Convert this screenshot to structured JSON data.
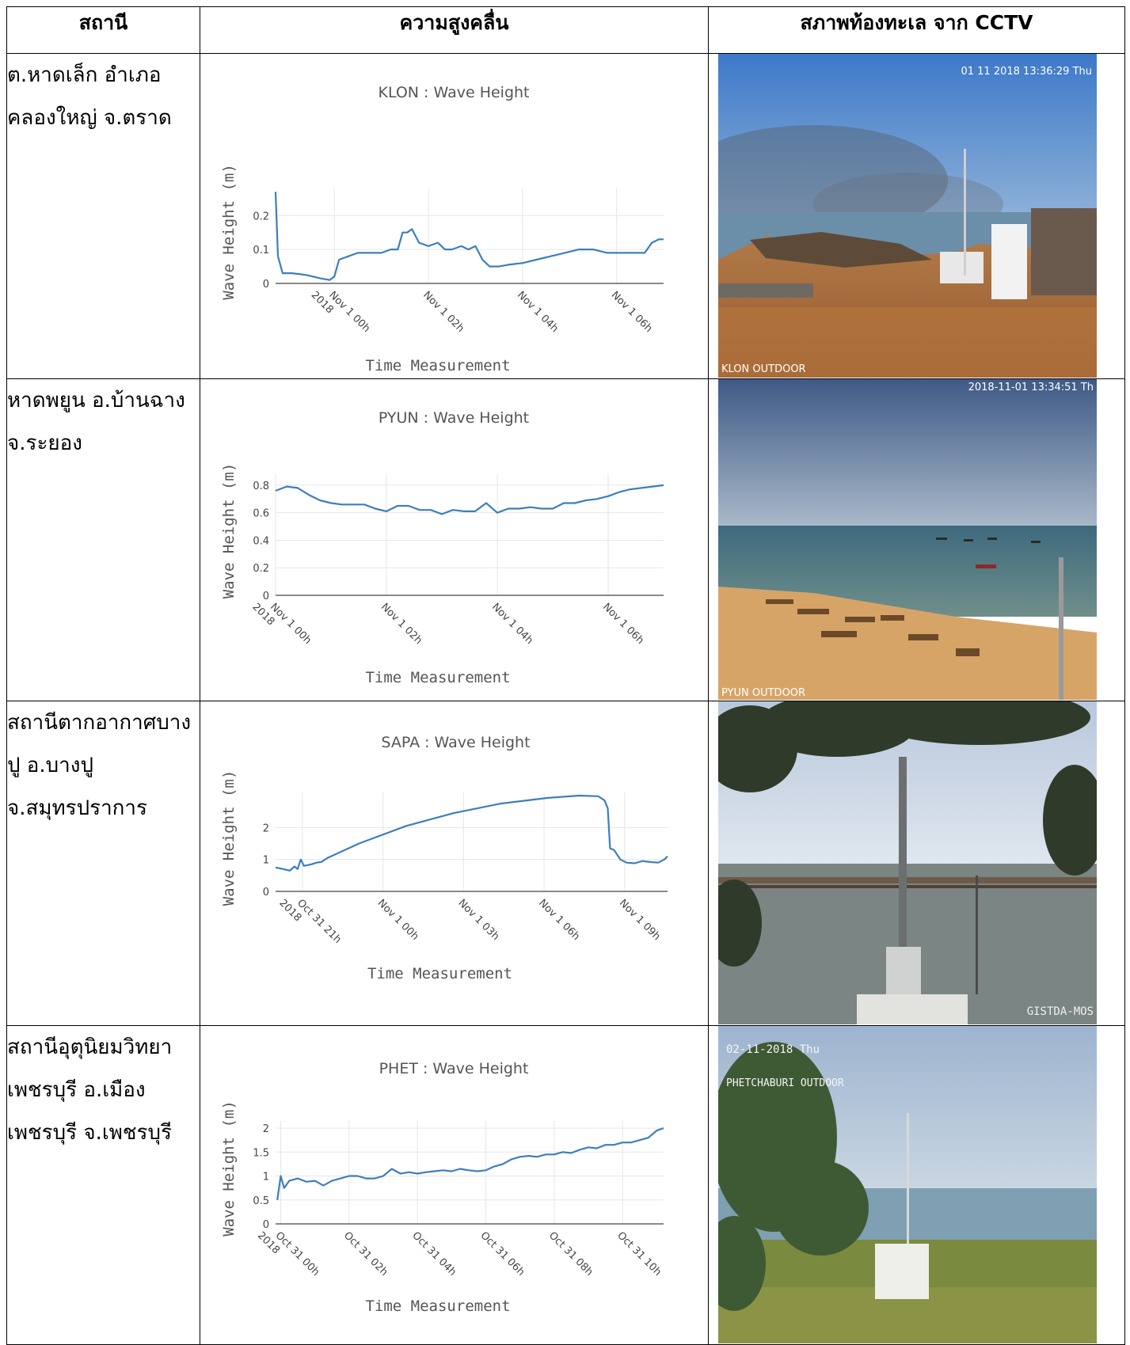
{
  "headers": {
    "station": "สถานี",
    "wave": "ความสูงคลื่น",
    "cctv": "สภาพท้องทะเล จาก CCTV"
  },
  "rows": [
    {
      "station_lines": [
        "ต.หาดเล็ก อำเภอ",
        "คลองใหญ่ จ.ตราด"
      ],
      "chart_title": "KLON : Wave Height",
      "cctv_overlay_top": "01 11 2018 13:36:29 Thu",
      "cctv_overlay_bottom": "KLON OUTDOOR"
    },
    {
      "station_lines": [
        "หาดพยูน อ.บ้านฉาง",
        "จ.ระยอง"
      ],
      "chart_title": "PYUN : Wave Height",
      "cctv_overlay_top": "2018-11-01 13:34:51 Th",
      "cctv_overlay_bottom": "PYUN OUTDOOR"
    },
    {
      "station_lines": [
        "สถานีตากอากาศบาง",
        "ปู อ.บางปู",
        "จ.สมุทรปราการ"
      ],
      "chart_title": "SAPA : Wave Height",
      "cctv_overlay_top": "",
      "cctv_overlay_bottom": "GISTDA-MOS"
    },
    {
      "station_lines": [
        "สถานีอุตุนิยมวิทยา",
        "เพชรบุรี อ.เมือง",
        "เพชรบุรี จ.เพชรบุรี"
      ],
      "chart_title": "PHET : Wave Height",
      "cctv_overlay_top": "02-11-2018 Thu",
      "cctv_overlay_bottom": "PHETCHABURI OUTDOOR"
    }
  ],
  "colors": {
    "line": "#3d7ebf",
    "grid": "#e6e6e6",
    "axis": "#444444",
    "title": "#555555"
  },
  "chart_data": [
    {
      "type": "line",
      "title": "KLON : Wave Height",
      "xlabel": "Time Measurement",
      "ylabel": "Wave Height (m)",
      "ylim": [
        0,
        0.28
      ],
      "yticks": [
        0,
        0.1,
        0.2
      ],
      "xticks": [
        "Nov 1 00h 2018",
        "Nov 1 02h",
        "Nov 1 04h",
        "Nov 1 06h"
      ],
      "x_hours": [
        -1.25,
        -1.2,
        -1.1,
        -0.9,
        -0.6,
        -0.3,
        -0.1,
        0.0,
        0.1,
        0.3,
        0.5,
        0.7,
        1.0,
        1.2,
        1.35,
        1.45,
        1.55,
        1.65,
        1.8,
        2.0,
        2.2,
        2.35,
        2.5,
        2.7,
        2.85,
        3.0,
        3.15,
        3.3,
        3.5,
        3.7,
        4.0,
        4.3,
        4.6,
        4.9,
        5.2,
        5.5,
        5.8,
        6.0,
        6.2,
        6.4,
        6.6,
        6.75,
        6.9,
        7.0
      ],
      "values": [
        0.27,
        0.08,
        0.03,
        0.03,
        0.025,
        0.015,
        0.01,
        0.02,
        0.07,
        0.08,
        0.09,
        0.09,
        0.09,
        0.1,
        0.1,
        0.15,
        0.15,
        0.16,
        0.12,
        0.11,
        0.12,
        0.1,
        0.1,
        0.11,
        0.1,
        0.11,
        0.07,
        0.05,
        0.05,
        0.055,
        0.06,
        0.07,
        0.08,
        0.09,
        0.1,
        0.1,
        0.09,
        0.09,
        0.09,
        0.09,
        0.09,
        0.12,
        0.13,
        0.13
      ],
      "xlim": [
        -1.25,
        7.0
      ]
    },
    {
      "type": "line",
      "title": "PYUN : Wave Height",
      "xlabel": "Time Measurement",
      "ylabel": "Wave Height (m)",
      "ylim": [
        0,
        0.88
      ],
      "yticks": [
        0,
        0.2,
        0.4,
        0.6,
        0.8
      ],
      "xticks": [
        "Nov 1 00h 2018",
        "Nov 1 02h",
        "Nov 1 04h",
        "Nov 1 06h"
      ],
      "x_hours": [
        0.0,
        0.2,
        0.4,
        0.6,
        0.8,
        1.0,
        1.2,
        1.4,
        1.6,
        1.8,
        2.0,
        2.2,
        2.4,
        2.6,
        2.8,
        3.0,
        3.2,
        3.4,
        3.6,
        3.8,
        4.0,
        4.2,
        4.4,
        4.6,
        4.8,
        5.0,
        5.2,
        5.4,
        5.6,
        5.8,
        6.0,
        6.2,
        6.4,
        6.6,
        6.8,
        7.0
      ],
      "values": [
        0.76,
        0.79,
        0.78,
        0.73,
        0.69,
        0.67,
        0.66,
        0.66,
        0.66,
        0.63,
        0.61,
        0.65,
        0.65,
        0.62,
        0.62,
        0.59,
        0.62,
        0.61,
        0.61,
        0.67,
        0.6,
        0.63,
        0.63,
        0.64,
        0.63,
        0.63,
        0.67,
        0.67,
        0.69,
        0.7,
        0.72,
        0.75,
        0.77,
        0.78,
        0.79,
        0.8
      ],
      "xlim": [
        0.0,
        7.0
      ]
    },
    {
      "type": "line",
      "title": "SAPA : Wave Height",
      "xlabel": "Time Measurement",
      "ylabel": "Wave Height (m)",
      "ylim": [
        0,
        3.1
      ],
      "yticks": [
        0,
        1,
        2
      ],
      "xticks": [
        "Oct 31 21h 2018",
        "Nov 1 00h",
        "Nov 1 03h",
        "Nov 1 06h",
        "Nov 1 09h"
      ],
      "x_hours": [
        -22.3,
        -21.8,
        -21.4,
        -21.1,
        -20.9,
        -20.7,
        -20.5,
        -20.3,
        -20.0,
        -19.7,
        -19.4,
        -19.0,
        -17.0,
        -14.0,
        -11.0,
        -8.0,
        -5.0,
        -3.0,
        -1.8,
        -1.4,
        -1.2,
        -1.05,
        -0.8,
        -0.4,
        0.0,
        0.5,
        1.0,
        1.5,
        2.0,
        2.4,
        2.6
      ],
      "values": [
        0.75,
        0.7,
        0.65,
        0.78,
        0.7,
        1.0,
        0.8,
        0.82,
        0.85,
        0.9,
        0.92,
        1.05,
        1.5,
        2.05,
        2.45,
        2.75,
        2.93,
        3.0,
        2.98,
        2.85,
        2.6,
        1.35,
        1.3,
        1.0,
        0.9,
        0.88,
        0.95,
        0.92,
        0.9,
        1.0,
        1.1
      ],
      "xlim": [
        -22.3,
        2.6
      ]
    },
    {
      "type": "line",
      "title": "PHET : Wave Height",
      "xlabel": "Time Measurement",
      "ylabel": "Wave Height (m)",
      "ylim": [
        0,
        2.15
      ],
      "yticks": [
        0,
        0.5,
        1,
        1.5,
        2
      ],
      "xticks": [
        "Oct 31 00h 2018",
        "Oct 31 02h",
        "Oct 31 04h",
        "Oct 31 06h",
        "Oct 31 08h",
        "Oct 31 10h"
      ],
      "x_hours": [
        -0.1,
        0.0,
        0.1,
        0.25,
        0.5,
        0.75,
        1.0,
        1.25,
        1.5,
        1.75,
        2.0,
        2.25,
        2.5,
        2.75,
        3.0,
        3.25,
        3.5,
        3.75,
        4.0,
        4.25,
        4.5,
        4.75,
        5.0,
        5.25,
        5.5,
        5.75,
        6.0,
        6.25,
        6.5,
        6.75,
        7.0,
        7.25,
        7.5,
        7.75,
        8.0,
        8.25,
        8.5,
        8.75,
        9.0,
        9.25,
        9.5,
        9.75,
        10.0,
        10.25,
        10.5,
        10.75,
        11.0,
        11.2
      ],
      "values": [
        0.5,
        1.0,
        0.75,
        0.9,
        0.95,
        0.88,
        0.9,
        0.8,
        0.9,
        0.95,
        1.0,
        1.0,
        0.95,
        0.95,
        1.0,
        1.15,
        1.05,
        1.08,
        1.05,
        1.08,
        1.1,
        1.12,
        1.1,
        1.15,
        1.12,
        1.1,
        1.12,
        1.2,
        1.25,
        1.35,
        1.4,
        1.42,
        1.4,
        1.45,
        1.45,
        1.5,
        1.48,
        1.55,
        1.6,
        1.58,
        1.65,
        1.65,
        1.7,
        1.7,
        1.75,
        1.8,
        1.95,
        2.0
      ],
      "xlim": [
        -0.15,
        11.2
      ]
    }
  ]
}
